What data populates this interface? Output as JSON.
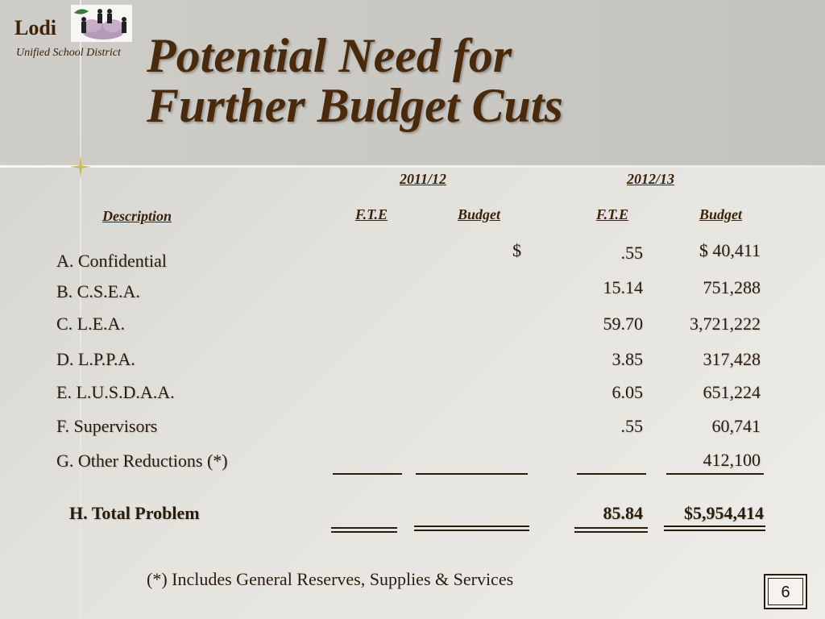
{
  "brand": {
    "name": "Lodi",
    "subtitle": "Unified School District"
  },
  "title": {
    "line1": "Potential Need for",
    "line2": "Further Budget Cuts"
  },
  "headers": {
    "year1": "2011/12",
    "year2": "2012/13",
    "description": "Description",
    "fte1": "F.T.E",
    "budget1": "Budget",
    "fte2": "F.T.E",
    "budget2": "Budget"
  },
  "rows": [
    {
      "label": "A.  Confidential",
      "col_dollar": "$",
      "fte": ".55",
      "budget": "$ 40,411"
    },
    {
      "label": "B.  C.S.E.A.",
      "fte": "15.14",
      "budget": "751,288"
    },
    {
      "label": "C.  L.E.A.",
      "fte": "59.70",
      "budget": "3,721,222"
    },
    {
      "label": "D.  L.P.P.A.",
      "fte": "3.85",
      "budget": "317,428"
    },
    {
      "label": "E.  L.U.S.D.A.A.",
      "fte": "6.05",
      "budget": "651,224"
    },
    {
      "label": "F.  Supervisors",
      "fte": ".55",
      "budget": "60,741"
    },
    {
      "label": "G.  Other Reductions (*)",
      "fte": "",
      "budget": "412,100"
    }
  ],
  "total": {
    "label": "H.    Total Problem",
    "fte": "85.84",
    "budget": "$5,954,414"
  },
  "footnote": "(*)  Includes General Reserves, Supplies & Services",
  "page_number": "6"
}
